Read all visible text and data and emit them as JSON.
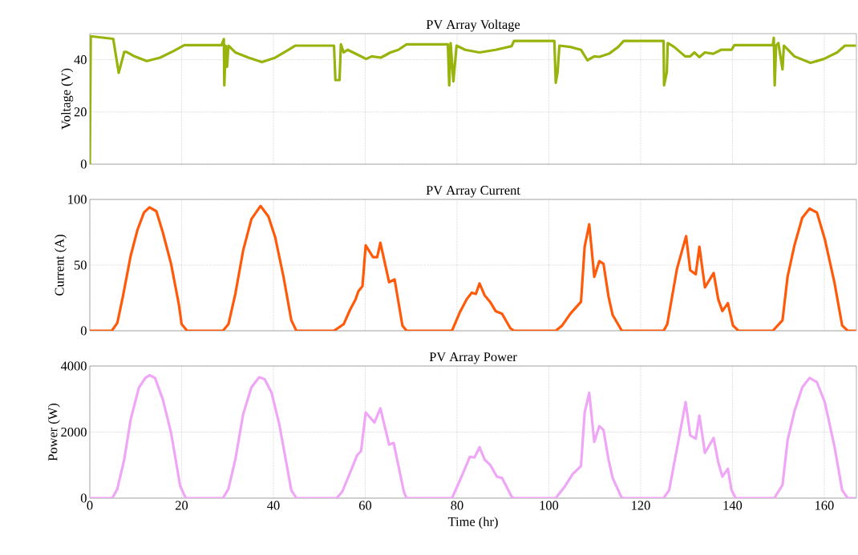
{
  "chart_data": [
    {
      "type": "line",
      "title": "PV Array Voltage",
      "ylabel": "Voltage (V)",
      "xlim": [
        0,
        167
      ],
      "xticks": [
        0,
        20,
        40,
        60,
        80,
        100,
        120,
        140,
        160
      ],
      "ylim": [
        0,
        50
      ],
      "yticks": [
        0,
        20,
        40
      ],
      "grid": true,
      "tick_labels": "y",
      "x": [
        0,
        0.2,
        5.1,
        6.3,
        7.5,
        8,
        9.5,
        12.4,
        15.3,
        18.2,
        20.6,
        28.7,
        29.2,
        29.3,
        29.6,
        29.9,
        30.2,
        31.7,
        34.6,
        37.5,
        40.4,
        43.3,
        44.8,
        53.2,
        53.5,
        54.4,
        54.7,
        55.3,
        56.2,
        58.5,
        60.2,
        61.4,
        63.4,
        65.5,
        67.2,
        69,
        78,
        78.3,
        78.6,
        79.2,
        79.9,
        81.8,
        84.9,
        88.4,
        91.9,
        92.4,
        101.2,
        101.5,
        101.9,
        102.3,
        104.7,
        107,
        108.4,
        109.9,
        111,
        113.1,
        115.1,
        116.3,
        125,
        125.1,
        125.7,
        125.9,
        127.3,
        129.7,
        130.8,
        131.7,
        132.8,
        134,
        135.8,
        137.5,
        139.8,
        140.4,
        148.8,
        149,
        149.2,
        149.5,
        150,
        150.9,
        151.2,
        153.5,
        157,
        159.9,
        162.8,
        164.5,
        166.9
      ],
      "series": [
        {
          "color": "#99b30d",
          "values": [
            0,
            49,
            48,
            35,
            43,
            43,
            41.5,
            39.5,
            40.8,
            43.3,
            45.6,
            45.6,
            47.9,
            30.2,
            45.4,
            37.3,
            45.4,
            42.8,
            40.8,
            39.1,
            40.8,
            43.8,
            45.4,
            45.4,
            32.2,
            32.2,
            45.9,
            42.8,
            43.8,
            41.8,
            40.3,
            41.3,
            40.8,
            42.8,
            43.8,
            45.9,
            45.9,
            30.2,
            46.4,
            31.7,
            45.4,
            43.8,
            42.8,
            43.8,
            45.2,
            47.2,
            47.2,
            31.2,
            35.2,
            45.4,
            44.9,
            43.8,
            39.8,
            41.3,
            41.1,
            42.3,
            44.9,
            47.2,
            47.2,
            30.2,
            35.2,
            46.4,
            44.9,
            41.3,
            41.3,
            42.8,
            41,
            42.8,
            42.3,
            43.8,
            43.8,
            45.6,
            45.6,
            48.4,
            30.2,
            45.4,
            46.4,
            36.3,
            45.4,
            41.3,
            38.8,
            40.3,
            42.8,
            45.4,
            45.4
          ]
        }
      ]
    },
    {
      "type": "line",
      "title": "PV Array Current",
      "ylabel": "Current (A)",
      "xlim": [
        0,
        167
      ],
      "xticks": [
        0,
        20,
        40,
        60,
        80,
        100,
        120,
        140,
        160
      ],
      "ylim": [
        0,
        100
      ],
      "yticks": [
        0,
        50,
        100
      ],
      "grid": true,
      "tick_labels": "y",
      "x": [
        0,
        4.8,
        6,
        7.2,
        8.9,
        10.4,
        11.8,
        13,
        14.5,
        15.9,
        17.7,
        19.4,
        20,
        21.2,
        29,
        30.2,
        31.7,
        33.4,
        35.2,
        37.2,
        38.9,
        40.4,
        42.2,
        43.9,
        45,
        53.2,
        55.3,
        56.7,
        57.9,
        58.5,
        59.4,
        60.1,
        61.7,
        62.6,
        63.3,
        65.2,
        66.4,
        68.1,
        69,
        78.9,
        80.6,
        82.1,
        83.2,
        84.1,
        84.9,
        86,
        87.2,
        88.4,
        89.8,
        91.6,
        92.4,
        101.5,
        102.9,
        104.7,
        107,
        107.8,
        108.8,
        109.9,
        111,
        111.9,
        113,
        113.9,
        115.9,
        125,
        125.8,
        127.9,
        129.9,
        130.8,
        132,
        132.8,
        134,
        135.9,
        136.9,
        137.8,
        139,
        140.1,
        141.3,
        148.8,
        150.9,
        152,
        153.5,
        155.2,
        156.8,
        158.4,
        160.1,
        162.2,
        163.9,
        165.1,
        166.9
      ],
      "series": [
        {
          "color": "#ff5a0a",
          "values": [
            0,
            0,
            6,
            26,
            57,
            77,
            90,
            94,
            91,
            75,
            51,
            20,
            5,
            0,
            0,
            5,
            28,
            61,
            85,
            95,
            87,
            71,
            41,
            8,
            0,
            0,
            5,
            16,
            24,
            30,
            34,
            65,
            56,
            56,
            67,
            37,
            39,
            4,
            0,
            0,
            14,
            24,
            29,
            28,
            36,
            27,
            22,
            15,
            13,
            2,
            0,
            0,
            4,
            13,
            22,
            64,
            81,
            41,
            53,
            51,
            26,
            12,
            0,
            0,
            5,
            47,
            72,
            46,
            43,
            64,
            33,
            44,
            24,
            15,
            21,
            4,
            0,
            0,
            8,
            41,
            65,
            86,
            93,
            90,
            70,
            37,
            4,
            0,
            0
          ]
        }
      ]
    },
    {
      "type": "line",
      "title": "PV Array Power",
      "ylabel": "Power (W)",
      "xlabel": "Time (hr)",
      "xlim": [
        0,
        167
      ],
      "xticks": [
        0,
        20,
        40,
        60,
        80,
        100,
        120,
        140,
        160
      ],
      "ylim": [
        0,
        4000
      ],
      "yticks": [
        0,
        2000,
        4000
      ],
      "grid": true,
      "x": [
        0,
        4.9,
        6,
        7.5,
        8.9,
        10.7,
        12.1,
        13,
        14.2,
        15.9,
        17.7,
        19.7,
        20.9,
        29,
        30.2,
        31.7,
        33.4,
        35.2,
        36.9,
        38.1,
        39.6,
        41.3,
        43.9,
        45,
        53.8,
        55,
        56.7,
        58.2,
        59.1,
        60.1,
        62,
        63.3,
        65.2,
        66.2,
        68.4,
        69,
        78.9,
        80.6,
        82.8,
        83.8,
        84.9,
        86,
        87.2,
        88.7,
        89.8,
        91.9,
        92.4,
        101.5,
        103.5,
        105.2,
        107,
        107.8,
        108.8,
        109.9,
        111,
        111.9,
        113,
        113.9,
        115.9,
        125,
        126.2,
        127.9,
        129.8,
        130.8,
        132,
        132.8,
        134,
        135.9,
        136.9,
        137.8,
        139,
        139.8,
        140.7,
        149.1,
        150.9,
        152,
        153.5,
        155.2,
        156.8,
        158.4,
        160.1,
        162.2,
        163.9,
        165.1,
        166.9
      ],
      "series": [
        {
          "color": "#f0a6f7",
          "values": [
            0,
            0,
            280,
            1170,
            2380,
            3350,
            3640,
            3720,
            3640,
            2990,
            1980,
            360,
            0,
            0,
            280,
            1170,
            2540,
            3350,
            3660,
            3600,
            3190,
            2220,
            240,
            0,
            0,
            200,
            770,
            1290,
            1430,
            2590,
            2290,
            2720,
            1620,
            1670,
            200,
            0,
            0,
            530,
            1250,
            1230,
            1540,
            1170,
            1010,
            650,
            610,
            40,
            0,
            0,
            360,
            730,
            970,
            2590,
            3190,
            1700,
            2180,
            2060,
            1170,
            610,
            0,
            0,
            240,
            1490,
            2910,
            1900,
            1800,
            2500,
            1370,
            1820,
            1090,
            650,
            890,
            240,
            0,
            0,
            400,
            1740,
            2630,
            3350,
            3640,
            3510,
            2910,
            1580,
            240,
            0,
            0
          ]
        }
      ]
    }
  ]
}
